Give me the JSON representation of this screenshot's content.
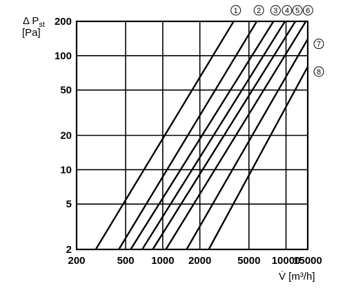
{
  "chart_data": {
    "type": "line",
    "x_scale": "log",
    "y_scale": "log",
    "xlim": [
      200,
      15000
    ],
    "ylim": [
      2,
      200
    ],
    "x_ticks": [
      200,
      500,
      1000,
      2000,
      5000,
      10000,
      15000
    ],
    "x_tick_labels": [
      "200",
      "500",
      "1000",
      "2000",
      "5000",
      "10000",
      "15000"
    ],
    "y_ticks": [
      2,
      5,
      10,
      20,
      50,
      100,
      200
    ],
    "y_tick_labels": [
      "2",
      "5",
      "10",
      "20",
      "50",
      "100",
      "200"
    ],
    "ylabel": "Δ P",
    "ylabel_sub": "st",
    "ylabel_unit": "[Pa]",
    "xlabel": "V̇ [m³/h]",
    "grid": true,
    "series": [
      {
        "name": "①",
        "x": [
          286,
          3760
        ],
        "y": [
          2,
          200
        ]
      },
      {
        "name": "②",
        "x": [
          440,
          5790
        ],
        "y": [
          2,
          200
        ]
      },
      {
        "name": "③",
        "x": [
          549,
          7910
        ],
        "y": [
          2,
          200
        ]
      },
      {
        "name": "④",
        "x": [
          681,
          9800
        ],
        "y": [
          2,
          200
        ]
      },
      {
        "name": "⑤",
        "x": [
          829,
          11910
        ],
        "y": [
          2,
          200
        ]
      },
      {
        "name": "⑥",
        "x": [
          1060,
          14490
        ],
        "y": [
          2,
          200
        ]
      },
      {
        "name": "⑦",
        "x": [
          1560,
          15000
        ],
        "y": [
          2,
          140
        ]
      },
      {
        "name": "⑧",
        "x": [
          2360,
          15000
        ],
        "y": [
          2,
          80
        ]
      }
    ]
  }
}
